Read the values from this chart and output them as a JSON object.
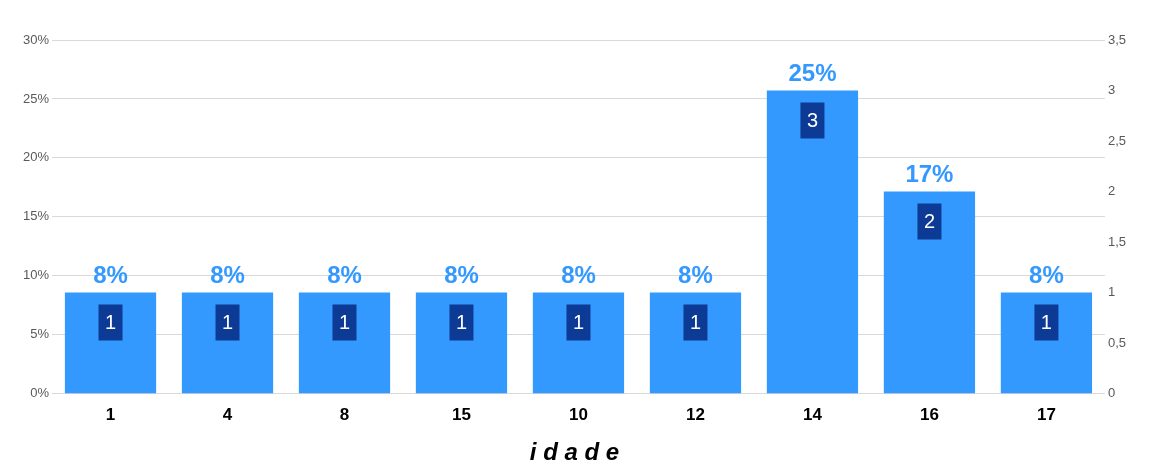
{
  "chart_data": {
    "type": "bar",
    "xlabel": "i d a d e",
    "categories": [
      "1",
      "4",
      "8",
      "15",
      "10",
      "12",
      "14",
      "16",
      "17"
    ],
    "series": [
      {
        "color": "#3399ff",
        "axis": "y2",
        "values": [
          1,
          1,
          1,
          1,
          1,
          1,
          3,
          2,
          1
        ]
      }
    ],
    "data_labels": true,
    "annotations": [
      "8%",
      "8%",
      "8%",
      "8%",
      "8%",
      "8%",
      "25%",
      "17%",
      "8%"
    ],
    "ylim": [
      0,
      30
    ],
    "yticks": [
      {
        "value": 0,
        "label": "0%"
      },
      {
        "value": 5,
        "label": "5%"
      },
      {
        "value": 10,
        "label": "10%"
      },
      {
        "value": 15,
        "label": "15%"
      },
      {
        "value": 20,
        "label": "20%"
      },
      {
        "value": 25,
        "label": "25%"
      },
      {
        "value": 30,
        "label": "30%"
      }
    ],
    "y2lim": [
      0,
      3.5
    ],
    "y2ticks": [
      0,
      {
        "value": 0.5,
        "label": "0,5"
      },
      1,
      {
        "value": 1.5,
        "label": "1,5"
      },
      2,
      {
        "value": 2.5,
        "label": "2,5"
      },
      3,
      {
        "value": 3.5,
        "label": "3,5"
      }
    ],
    "grid": "y",
    "legend": false
  }
}
